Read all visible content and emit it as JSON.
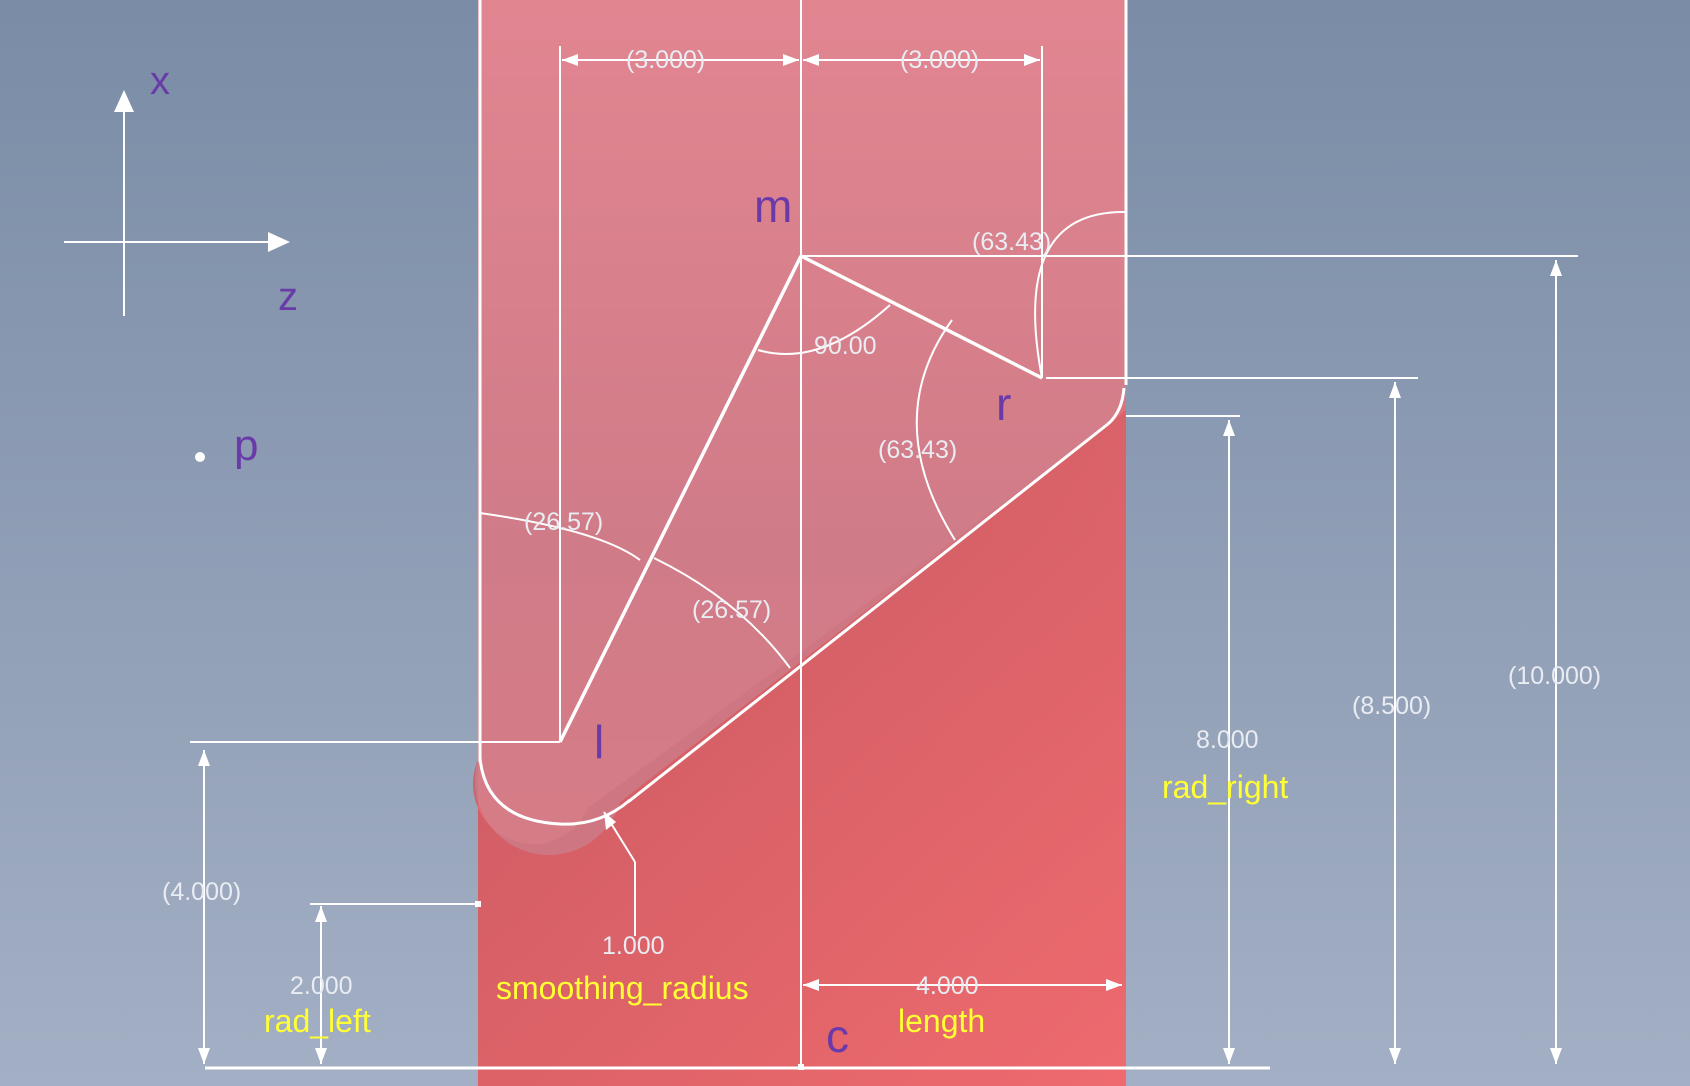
{
  "colors": {
    "background_top": "#7a8ca6",
    "background_bottom": "#a3afc4",
    "part_red": "#e66a72",
    "part_red_dark": "#c95a62",
    "sketch_overlay": "#c98a99",
    "sketch_line": "#ffffff",
    "dim_text": "#e9ecf2",
    "point_label": "#6a3ba8",
    "param_label": "#ffff33"
  },
  "axes": {
    "x_label": "x",
    "z_label": "z"
  },
  "points": {
    "m": "m",
    "r": "r",
    "l": "l",
    "c": "c",
    "p": "p"
  },
  "dimensions": {
    "top_left_width": "(3.000)",
    "top_right_width": "(3.000)",
    "angle_top_right": "(63.43)",
    "angle_apex": "90.00",
    "angle_right_lower": "(63.43)",
    "angle_left_upper": "(26.57)",
    "angle_left_lower": "(26.57)",
    "height_left_total": "(4.000)",
    "height_left_radius": "2.000",
    "smoothing_radius_value": "1.000",
    "length_value": "4.000",
    "height_right_radius": "8.000",
    "height_r": "(8.500)",
    "height_m": "(10.000)"
  },
  "params": {
    "rad_left": "rad_left",
    "smoothing_radius": "smoothing_radius",
    "length": "length",
    "rad_right": "rad_right"
  }
}
